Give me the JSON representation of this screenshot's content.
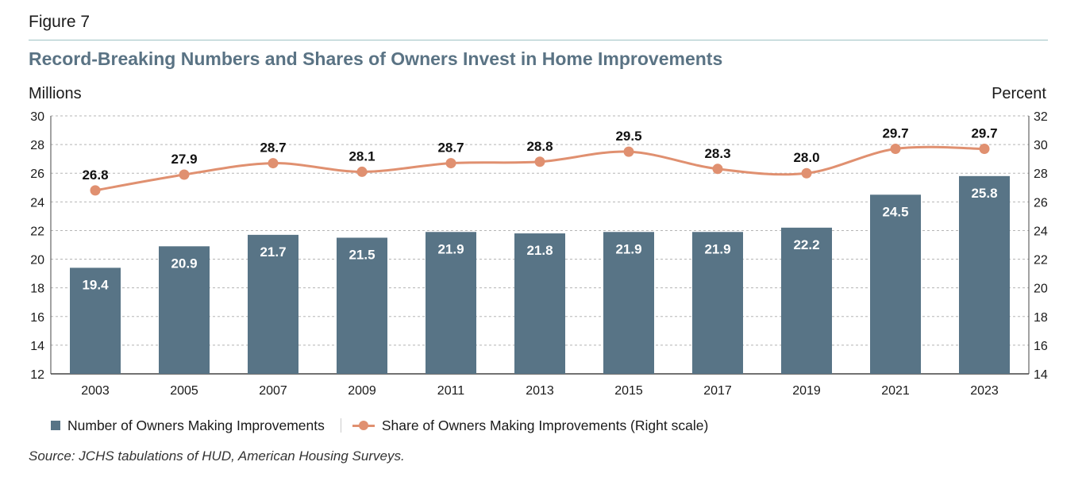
{
  "figure_label": "Figure 7",
  "title": "Record-Breaking Numbers and Shares of Owners Invest in Home Improvements",
  "source": "Source: JCHS tabulations of HUD, American Housing Surveys.",
  "colors": {
    "bars": "#587486",
    "line": "#e09070",
    "title": "#5a7384",
    "rule": "#9fc3c4",
    "grid": "#b5b5b5"
  },
  "chart_data": {
    "type": "bar",
    "categories": [
      "2003",
      "2005",
      "2007",
      "2009",
      "2011",
      "2013",
      "2015",
      "2017",
      "2019",
      "2021",
      "2023"
    ],
    "series": [
      {
        "name": "Number of Owners Making Improvements",
        "type": "bar",
        "axis": "left",
        "values": [
          19.4,
          20.9,
          21.7,
          21.5,
          21.9,
          21.8,
          21.9,
          21.9,
          22.2,
          24.5,
          25.8
        ]
      },
      {
        "name": "Share of Owners Making Improvements (Right scale)",
        "type": "line",
        "axis": "right",
        "values": [
          26.8,
          27.9,
          28.7,
          28.1,
          28.7,
          28.8,
          29.5,
          28.3,
          28.0,
          29.7,
          29.7
        ]
      }
    ],
    "ylabel": "Millions",
    "y2label": "Percent",
    "ylim": [
      12,
      30
    ],
    "y2lim": [
      14,
      32
    ],
    "yticks": [
      12,
      14,
      16,
      18,
      20,
      22,
      24,
      26,
      28,
      30
    ],
    "y2ticks": [
      14,
      16,
      18,
      20,
      22,
      24,
      26,
      28,
      30,
      32
    ],
    "grid": true,
    "legend": "bottom-left"
  }
}
